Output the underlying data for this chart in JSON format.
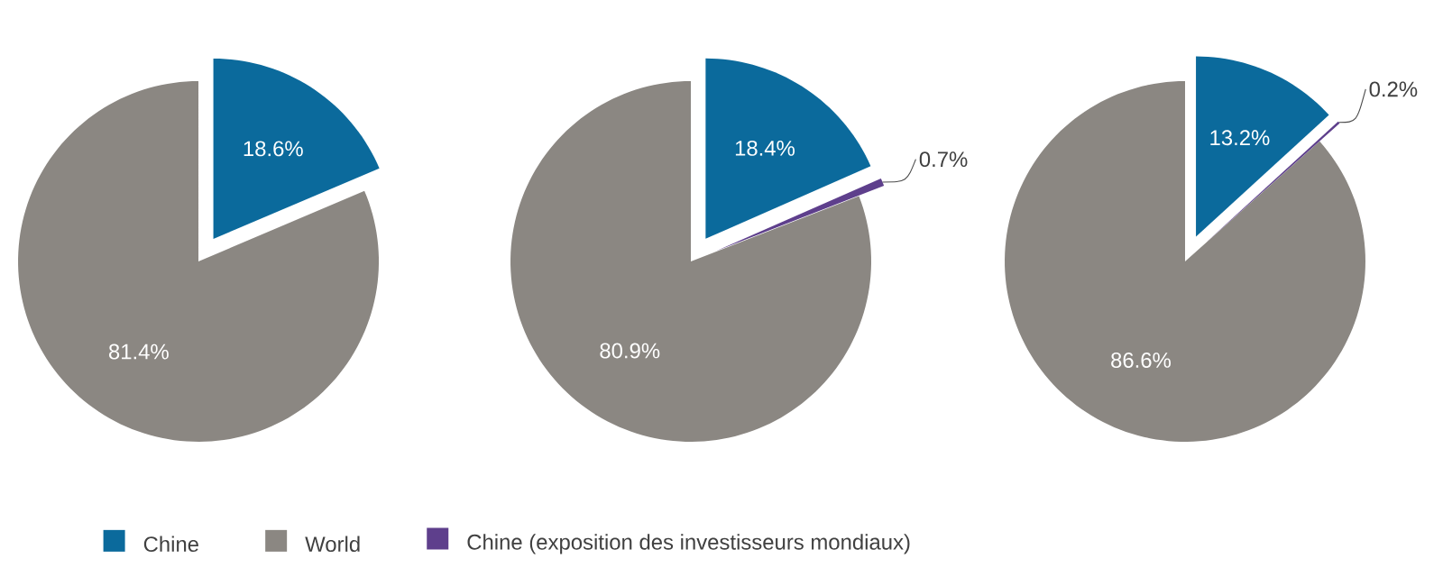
{
  "chart_data": [
    {
      "type": "pie",
      "categories": [
        null,
        null
      ],
      "values": [
        18.6,
        81.4
      ],
      "colors": [
        "#0b6a9c",
        "#8b8782"
      ],
      "value_labels": [
        "18.6%",
        "81.4%"
      ]
    },
    {
      "type": "pie",
      "categories": [
        null,
        null,
        null
      ],
      "values": [
        18.4,
        80.9,
        0.7
      ],
      "colors": [
        "#0b6a9c",
        "#8b8782",
        "#5e3f8c"
      ],
      "value_labels": [
        "18.4%",
        "80.9%",
        "0.7%"
      ]
    },
    {
      "type": "pie",
      "categories": [
        "Chine",
        "World",
        "Chine (exposition des investisseurs mondiaux)"
      ],
      "values": [
        13.2,
        86.6,
        0.2
      ],
      "colors": [
        "#0b6a9c",
        "#8b8782",
        "#5e3f8c"
      ],
      "value_labels": [
        "13.2%",
        "86.6%",
        "0.2%"
      ],
      "legend": "bottom"
    }
  ]
}
